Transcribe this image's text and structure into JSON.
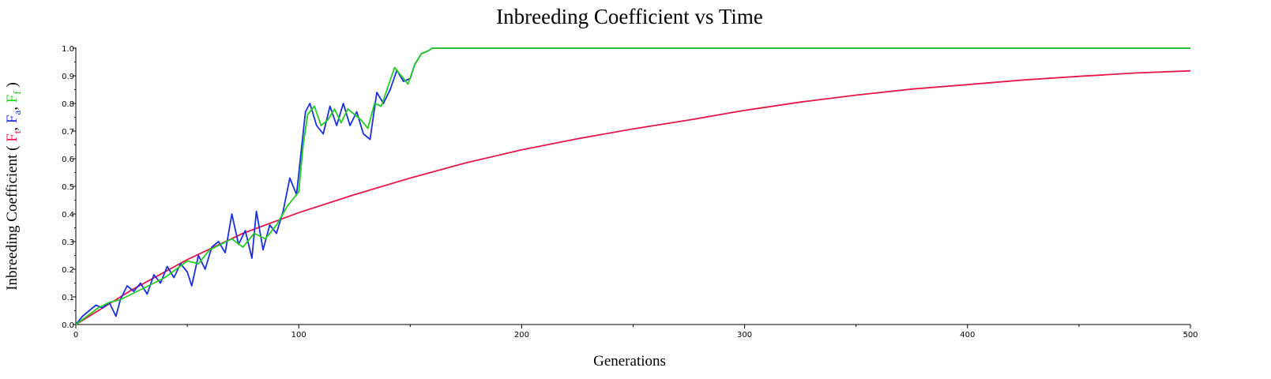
{
  "chart_data": {
    "type": "line",
    "title": "Inbreeding Coefficient vs Time",
    "xlabel": "Generations",
    "ylabel": {
      "prefix": "Inbreeding Coefficient (",
      "parts": [
        {
          "text": "F",
          "sub": "t",
          "color": "#e8174a"
        },
        {
          "text": "F",
          "sub": "a",
          "color": "#1a2fe0"
        },
        {
          "text": "F",
          "sub": "f",
          "color": "#22cc22"
        }
      ],
      "separator": ", ",
      "suffix": ")"
    },
    "xlim": [
      0,
      500
    ],
    "ylim": [
      0,
      1.0
    ],
    "x_ticks": [
      0,
      100,
      200,
      300,
      400,
      500
    ],
    "x_tick_labels": [
      "0",
      "100",
      "200",
      "300",
      "400",
      "500"
    ],
    "y_ticks": [
      0,
      0.1,
      0.2,
      0.3,
      0.4,
      0.5,
      0.6,
      0.7,
      0.8,
      0.9,
      1.0
    ],
    "y_tick_labels": [
      "0.0",
      "0.1",
      "0.2",
      "0.3",
      "0.4",
      "0.5",
      "0.6",
      "0.7",
      "0.8",
      "0.9",
      "1.0"
    ],
    "grid": false,
    "series": [
      {
        "id": "Ft",
        "color": "#e8174a",
        "x": [
          0,
          25,
          50,
          75,
          100,
          125,
          150,
          175,
          200,
          225,
          250,
          275,
          300,
          325,
          350,
          375,
          400,
          425,
          450,
          475,
          500
        ],
        "values": [
          0,
          0.125,
          0.235,
          0.33,
          0.405,
          0.47,
          0.53,
          0.585,
          0.632,
          0.672,
          0.708,
          0.74,
          0.775,
          0.805,
          0.83,
          0.852,
          0.868,
          0.885,
          0.898,
          0.91,
          0.918
        ]
      },
      {
        "id": "Fa",
        "color": "#1a2fe0",
        "x": [
          0,
          3,
          6,
          9,
          12,
          15,
          18,
          20,
          23,
          26,
          29,
          32,
          35,
          38,
          41,
          44,
          47,
          50,
          52,
          55,
          58,
          61,
          64,
          67,
          70,
          73,
          76,
          79,
          81,
          84,
          87,
          90,
          93,
          96,
          99,
          101,
          103,
          105,
          108,
          111,
          114,
          117,
          120,
          123,
          126,
          129,
          132,
          135,
          138,
          141,
          144,
          147,
          150,
          152,
          155,
          158,
          160,
          200,
          300,
          400,
          500
        ],
        "values": [
          0,
          0.03,
          0.05,
          0.07,
          0.06,
          0.08,
          0.03,
          0.09,
          0.14,
          0.12,
          0.15,
          0.11,
          0.18,
          0.15,
          0.21,
          0.17,
          0.22,
          0.19,
          0.14,
          0.25,
          0.2,
          0.28,
          0.3,
          0.26,
          0.4,
          0.29,
          0.34,
          0.24,
          0.41,
          0.27,
          0.36,
          0.33,
          0.41,
          0.53,
          0.47,
          0.62,
          0.77,
          0.8,
          0.72,
          0.69,
          0.79,
          0.72,
          0.8,
          0.72,
          0.77,
          0.69,
          0.67,
          0.84,
          0.8,
          0.85,
          0.92,
          0.88,
          0.89,
          0.94,
          0.98,
          0.99,
          1.0,
          1.0,
          1.0,
          1.0,
          1.0
        ]
      },
      {
        "id": "Ff",
        "color": "#22cc22",
        "x": [
          0,
          5,
          10,
          15,
          20,
          25,
          30,
          35,
          40,
          45,
          50,
          55,
          60,
          65,
          70,
          75,
          80,
          85,
          90,
          95,
          100,
          102,
          104,
          107,
          110,
          113,
          116,
          119,
          122,
          125,
          128,
          131,
          134,
          137,
          140,
          143,
          146,
          149,
          152,
          155,
          158,
          160,
          200,
          300,
          400,
          500
        ],
        "values": [
          0,
          0.03,
          0.06,
          0.08,
          0.09,
          0.11,
          0.13,
          0.15,
          0.17,
          0.2,
          0.23,
          0.22,
          0.27,
          0.29,
          0.31,
          0.28,
          0.33,
          0.31,
          0.36,
          0.43,
          0.48,
          0.65,
          0.76,
          0.79,
          0.72,
          0.74,
          0.78,
          0.73,
          0.78,
          0.76,
          0.74,
          0.71,
          0.8,
          0.79,
          0.86,
          0.93,
          0.9,
          0.87,
          0.94,
          0.98,
          0.99,
          1.0,
          1.0,
          1.0,
          1.0,
          1.0
        ]
      }
    ]
  }
}
